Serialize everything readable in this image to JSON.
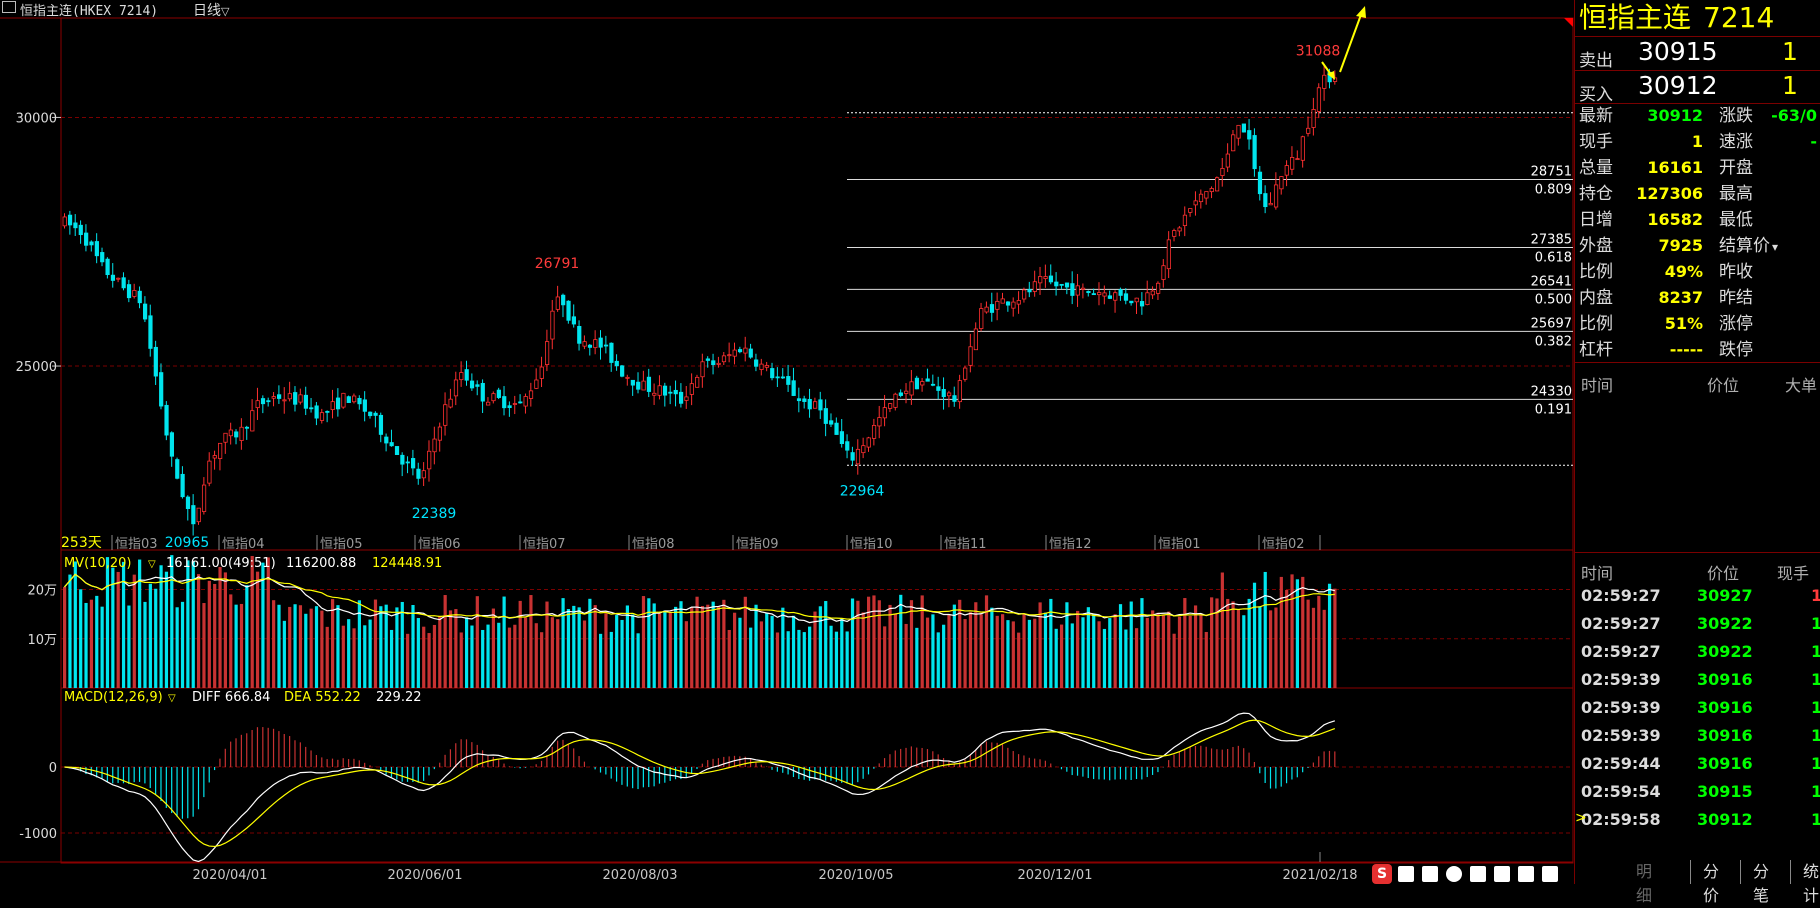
{
  "topbar": {
    "title": "恒指主连(HKEX 7214)",
    "period": "日线"
  },
  "quote_panel": {
    "name": "恒指主连",
    "code": "7214",
    "ask": {
      "label": "卖出",
      "price": "30915",
      "qty": "1"
    },
    "bid": {
      "label": "买入",
      "price": "30912",
      "qty": "1"
    },
    "stats_left": [
      {
        "k": "最新",
        "v": "30912",
        "color": "green"
      },
      {
        "k": "现手",
        "v": "1",
        "color": "yellow"
      },
      {
        "k": "总量",
        "v": "16161",
        "color": "yellow"
      },
      {
        "k": "持仓",
        "v": "127306",
        "color": "yellow"
      },
      {
        "k": "日增",
        "v": "16582",
        "color": "yellow"
      },
      {
        "k": "外盘",
        "v": "7925",
        "color": "yellow"
      },
      {
        "k": "比例",
        "v": "49%",
        "color": "yellow"
      },
      {
        "k": "内盘",
        "v": "8237",
        "color": "yellow"
      },
      {
        "k": "比例",
        "v": "51%",
        "color": "yellow"
      },
      {
        "k": "杠杆",
        "v": "-----",
        "color": "yellow"
      }
    ],
    "stats_right": [
      {
        "k": "涨跌",
        "v": "-63/0",
        "color": "green"
      },
      {
        "k": "速涨",
        "v": "-",
        "color": "green"
      },
      {
        "k": "开盘",
        "v": ""
      },
      {
        "k": "最高",
        "v": ""
      },
      {
        "k": "最低",
        "v": ""
      },
      {
        "k": "结算价",
        "v": ""
      },
      {
        "k": "昨收",
        "v": ""
      },
      {
        "k": "昨结",
        "v": ""
      },
      {
        "k": "涨停",
        "v": ""
      },
      {
        "k": "跌停",
        "v": ""
      }
    ],
    "section1_headers": {
      "time": "时间",
      "price": "价位",
      "big": "大单"
    },
    "section2_headers": {
      "time": "时间",
      "price": "价位",
      "hand": "现手"
    },
    "ticks": [
      {
        "time": "02:59:27",
        "price": "30927",
        "qty": "1",
        "color": "red"
      },
      {
        "time": "02:59:27",
        "price": "30922",
        "qty": "1",
        "color": "green"
      },
      {
        "time": "02:59:27",
        "price": "30922",
        "qty": "1",
        "color": "green"
      },
      {
        "time": "02:59:39",
        "price": "30916",
        "qty": "1",
        "color": "green"
      },
      {
        "time": "02:59:39",
        "price": "30916",
        "qty": "1",
        "color": "green"
      },
      {
        "time": "02:59:39",
        "price": "30916",
        "qty": "1",
        "color": "green"
      },
      {
        "time": "02:59:44",
        "price": "30916",
        "qty": "1",
        "color": "green"
      },
      {
        "time": "02:59:54",
        "price": "30915",
        "qty": "1",
        "color": "green"
      },
      {
        "time": "02:59:58",
        "price": "30912",
        "qty": "1",
        "color": "green"
      }
    ],
    "bottom_tabs": [
      "明细",
      "分价",
      "分笔",
      "统计"
    ]
  },
  "chart_data": {
    "type": "candlestick",
    "price_axis": {
      "ticks": [
        {
          "value": 30000,
          "label": "30000"
        },
        {
          "value": 25000,
          "label": "25000"
        }
      ],
      "range": [
        21300,
        32000
      ]
    },
    "annotations": {
      "high_label": "31088",
      "peak1": "26791",
      "trough1": "22389",
      "trough2": "22964",
      "low_label": "20965",
      "days": "253天"
    },
    "fib_levels": [
      {
        "price": "28751",
        "ratio": "0.809"
      },
      {
        "price": "27385",
        "ratio": "0.618"
      },
      {
        "price": "26541",
        "ratio": "0.500"
      },
      {
        "price": "25697",
        "ratio": "0.382"
      },
      {
        "price": "24330",
        "ratio": "0.191"
      }
    ],
    "month_labels": [
      "恒指03",
      "恒指04",
      "恒指05",
      "恒指06",
      "恒指07",
      "恒指08",
      "恒指09",
      "恒指10",
      "恒指11",
      "恒指12",
      "恒指01",
      "恒指02"
    ],
    "date_labels": [
      "2020/04/01",
      "2020/06/01",
      "2020/08/03",
      "2020/10/05",
      "2020/12/01",
      "2021/02/18"
    ],
    "volume": {
      "legend_name": "MV(10,20)",
      "legend_values": [
        "16161.00(49:51)",
        "116200.88",
        "124448.91"
      ],
      "ticks": [
        "20万",
        "10万"
      ]
    },
    "macd": {
      "legend_name": "MACD(12,26,9)",
      "diff": "DIFF 666.84",
      "dea": "DEA 552.22",
      "macd_val": "229.22",
      "ticks": [
        "0",
        "-1000"
      ]
    },
    "colors": {
      "up": "#ff3030",
      "down": "#00e5ee",
      "ma1": "#ffffff",
      "ma2": "#ffff00",
      "grid": "#7a0000"
    }
  }
}
